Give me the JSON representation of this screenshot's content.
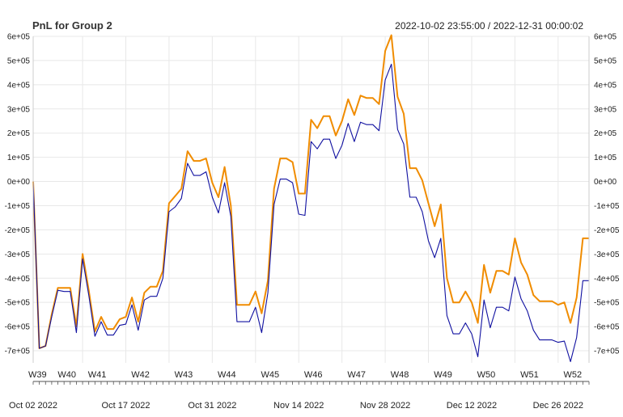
{
  "title": "PnL for Group 2",
  "date_range": "2022-10-02 23:55:00 / 2022-12-31 00:00:02",
  "colors": {
    "series_orange": "#f08c00",
    "series_blue": "#1010a0",
    "grid": "#e8e8e8",
    "axis": "#555555"
  },
  "chart_data": {
    "type": "line",
    "title": "PnL for Group 2",
    "x_range": [
      "2022-10-02",
      "2022-12-31"
    ],
    "ylim": [
      -750000,
      600000
    ],
    "grid": true,
    "y_ticks": [
      600000,
      500000,
      400000,
      300000,
      200000,
      100000,
      0,
      -100000,
      -200000,
      -300000,
      -400000,
      -500000,
      -600000,
      -700000
    ],
    "y_tick_labels": [
      "6e+05",
      "5e+05",
      "4e+05",
      "3e+05",
      "2e+05",
      "1e+05",
      "0e+00",
      "-1e+05",
      "-2e+05",
      "-3e+05",
      "-4e+05",
      "-5e+05",
      "-6e+05",
      "-7e+05"
    ],
    "week_labels": [
      {
        "date": "2022-10-02",
        "label": "W39"
      },
      {
        "date": "2022-10-03",
        "label": "W40"
      },
      {
        "date": "2022-10-10",
        "label": "W41"
      },
      {
        "date": "2022-10-17",
        "label": "W42"
      },
      {
        "date": "2022-10-24",
        "label": "W43"
      },
      {
        "date": "2022-10-31",
        "label": "W44"
      },
      {
        "date": "2022-11-07",
        "label": "W45"
      },
      {
        "date": "2022-11-14",
        "label": "W46"
      },
      {
        "date": "2022-11-21",
        "label": "W47"
      },
      {
        "date": "2022-11-28",
        "label": "W48"
      },
      {
        "date": "2022-12-05",
        "label": "W49"
      },
      {
        "date": "2022-12-12",
        "label": "W50"
      },
      {
        "date": "2022-12-19",
        "label": "W51"
      },
      {
        "date": "2022-12-26",
        "label": "W52"
      }
    ],
    "date_labels": [
      {
        "date": "2022-10-02",
        "label": "Oct 02 2022"
      },
      {
        "date": "2022-10-17",
        "label": "Oct 17 2022"
      },
      {
        "date": "2022-10-31",
        "label": "Oct 31 2022"
      },
      {
        "date": "2022-11-14",
        "label": "Nov 14 2022"
      },
      {
        "date": "2022-11-28",
        "label": "Nov 28 2022"
      },
      {
        "date": "2022-12-12",
        "label": "Dec 12 2022"
      },
      {
        "date": "2022-12-26",
        "label": "Dec 26 2022"
      }
    ],
    "series": [
      {
        "color": "#f08c00",
        "points": [
          [
            "2022-10-02",
            0
          ],
          [
            "2022-10-03",
            -690000
          ],
          [
            "2022-10-04",
            -680000
          ],
          [
            "2022-10-05",
            -550000
          ],
          [
            "2022-10-06",
            -440000
          ],
          [
            "2022-10-07",
            -440000
          ],
          [
            "2022-10-08",
            -440000
          ],
          [
            "2022-10-09",
            -600000
          ],
          [
            "2022-10-10",
            -300000
          ],
          [
            "2022-10-11",
            -450000
          ],
          [
            "2022-10-12",
            -620000
          ],
          [
            "2022-10-13",
            -560000
          ],
          [
            "2022-10-14",
            -610000
          ],
          [
            "2022-10-15",
            -610000
          ],
          [
            "2022-10-16",
            -570000
          ],
          [
            "2022-10-17",
            -560000
          ],
          [
            "2022-10-18",
            -480000
          ],
          [
            "2022-10-19",
            -580000
          ],
          [
            "2022-10-20",
            -460000
          ],
          [
            "2022-10-21",
            -435000
          ],
          [
            "2022-10-22",
            -435000
          ],
          [
            "2022-10-23",
            -370000
          ],
          [
            "2022-10-24",
            -90000
          ],
          [
            "2022-10-25",
            -60000
          ],
          [
            "2022-10-26",
            -30000
          ],
          [
            "2022-10-27",
            125000
          ],
          [
            "2022-10-28",
            85000
          ],
          [
            "2022-10-29",
            85000
          ],
          [
            "2022-10-30",
            95000
          ],
          [
            "2022-10-31",
            -5000
          ],
          [
            "2022-11-01",
            -65000
          ],
          [
            "2022-11-02",
            60000
          ],
          [
            "2022-11-03",
            -100000
          ],
          [
            "2022-11-04",
            -510000
          ],
          [
            "2022-11-05",
            -510000
          ],
          [
            "2022-11-06",
            -510000
          ],
          [
            "2022-11-07",
            -455000
          ],
          [
            "2022-11-08",
            -545000
          ],
          [
            "2022-11-09",
            -410000
          ],
          [
            "2022-11-10",
            -30000
          ],
          [
            "2022-11-11",
            95000
          ],
          [
            "2022-11-12",
            95000
          ],
          [
            "2022-11-13",
            80000
          ],
          [
            "2022-11-14",
            -50000
          ],
          [
            "2022-11-15",
            -50000
          ],
          [
            "2022-11-16",
            255000
          ],
          [
            "2022-11-17",
            220000
          ],
          [
            "2022-11-18",
            270000
          ],
          [
            "2022-11-19",
            270000
          ],
          [
            "2022-11-20",
            190000
          ],
          [
            "2022-11-21",
            250000
          ],
          [
            "2022-11-22",
            340000
          ],
          [
            "2022-11-23",
            275000
          ],
          [
            "2022-11-24",
            355000
          ],
          [
            "2022-11-25",
            345000
          ],
          [
            "2022-11-26",
            345000
          ],
          [
            "2022-11-27",
            320000
          ],
          [
            "2022-11-28",
            540000
          ],
          [
            "2022-11-29",
            605000
          ],
          [
            "2022-11-30",
            350000
          ],
          [
            "2022-12-01",
            280000
          ],
          [
            "2022-12-02",
            55000
          ],
          [
            "2022-12-03",
            55000
          ],
          [
            "2022-12-04",
            5000
          ],
          [
            "2022-12-05",
            -90000
          ],
          [
            "2022-12-06",
            -185000
          ],
          [
            "2022-12-07",
            -95000
          ],
          [
            "2022-12-08",
            -400000
          ],
          [
            "2022-12-09",
            -500000
          ],
          [
            "2022-12-10",
            -500000
          ],
          [
            "2022-12-11",
            -455000
          ],
          [
            "2022-12-12",
            -500000
          ],
          [
            "2022-12-13",
            -585000
          ],
          [
            "2022-12-14",
            -345000
          ],
          [
            "2022-12-15",
            -460000
          ],
          [
            "2022-12-16",
            -370000
          ],
          [
            "2022-12-17",
            -370000
          ],
          [
            "2022-12-18",
            -385000
          ],
          [
            "2022-12-19",
            -235000
          ],
          [
            "2022-12-20",
            -335000
          ],
          [
            "2022-12-21",
            -385000
          ],
          [
            "2022-12-22",
            -470000
          ],
          [
            "2022-12-23",
            -495000
          ],
          [
            "2022-12-24",
            -495000
          ],
          [
            "2022-12-25",
            -495000
          ],
          [
            "2022-12-26",
            -510000
          ],
          [
            "2022-12-27",
            -500000
          ],
          [
            "2022-12-28",
            -585000
          ],
          [
            "2022-12-29",
            -480000
          ],
          [
            "2022-12-30",
            -235000
          ],
          [
            "2022-12-31",
            -235000
          ]
        ]
      },
      {
        "color": "#1010a0",
        "points": [
          [
            "2022-10-02",
            0
          ],
          [
            "2022-10-03",
            -690000
          ],
          [
            "2022-10-04",
            -680000
          ],
          [
            "2022-10-05",
            -560000
          ],
          [
            "2022-10-06",
            -450000
          ],
          [
            "2022-10-07",
            -455000
          ],
          [
            "2022-10-08",
            -455000
          ],
          [
            "2022-10-09",
            -625000
          ],
          [
            "2022-10-10",
            -320000
          ],
          [
            "2022-10-11",
            -470000
          ],
          [
            "2022-10-12",
            -640000
          ],
          [
            "2022-10-13",
            -580000
          ],
          [
            "2022-10-14",
            -635000
          ],
          [
            "2022-10-15",
            -635000
          ],
          [
            "2022-10-16",
            -595000
          ],
          [
            "2022-10-17",
            -590000
          ],
          [
            "2022-10-18",
            -510000
          ],
          [
            "2022-10-19",
            -615000
          ],
          [
            "2022-10-20",
            -490000
          ],
          [
            "2022-10-21",
            -475000
          ],
          [
            "2022-10-22",
            -475000
          ],
          [
            "2022-10-23",
            -400000
          ],
          [
            "2022-10-24",
            -125000
          ],
          [
            "2022-10-25",
            -105000
          ],
          [
            "2022-10-26",
            -70000
          ],
          [
            "2022-10-27",
            75000
          ],
          [
            "2022-10-28",
            25000
          ],
          [
            "2022-10-29",
            25000
          ],
          [
            "2022-10-30",
            40000
          ],
          [
            "2022-10-31",
            -65000
          ],
          [
            "2022-11-01",
            -130000
          ],
          [
            "2022-11-02",
            -5000
          ],
          [
            "2022-11-03",
            -145000
          ],
          [
            "2022-11-04",
            -580000
          ],
          [
            "2022-11-05",
            -580000
          ],
          [
            "2022-11-06",
            -580000
          ],
          [
            "2022-11-07",
            -520000
          ],
          [
            "2022-11-08",
            -625000
          ],
          [
            "2022-11-09",
            -460000
          ],
          [
            "2022-11-10",
            -95000
          ],
          [
            "2022-11-11",
            10000
          ],
          [
            "2022-11-12",
            10000
          ],
          [
            "2022-11-13",
            -5000
          ],
          [
            "2022-11-14",
            -135000
          ],
          [
            "2022-11-15",
            -140000
          ],
          [
            "2022-11-16",
            165000
          ],
          [
            "2022-11-17",
            135000
          ],
          [
            "2022-11-18",
            175000
          ],
          [
            "2022-11-19",
            175000
          ],
          [
            "2022-11-20",
            95000
          ],
          [
            "2022-11-21",
            150000
          ],
          [
            "2022-11-22",
            240000
          ],
          [
            "2022-11-23",
            165000
          ],
          [
            "2022-11-24",
            245000
          ],
          [
            "2022-11-25",
            235000
          ],
          [
            "2022-11-26",
            235000
          ],
          [
            "2022-11-27",
            210000
          ],
          [
            "2022-11-28",
            420000
          ],
          [
            "2022-11-29",
            485000
          ],
          [
            "2022-11-30",
            215000
          ],
          [
            "2022-12-01",
            155000
          ],
          [
            "2022-12-02",
            -65000
          ],
          [
            "2022-12-03",
            -65000
          ],
          [
            "2022-12-04",
            -125000
          ],
          [
            "2022-12-05",
            -245000
          ],
          [
            "2022-12-06",
            -315000
          ],
          [
            "2022-12-07",
            -235000
          ],
          [
            "2022-12-08",
            -555000
          ],
          [
            "2022-12-09",
            -630000
          ],
          [
            "2022-12-10",
            -630000
          ],
          [
            "2022-12-11",
            -585000
          ],
          [
            "2022-12-12",
            -630000
          ],
          [
            "2022-12-13",
            -725000
          ],
          [
            "2022-12-14",
            -490000
          ],
          [
            "2022-12-15",
            -605000
          ],
          [
            "2022-12-16",
            -520000
          ],
          [
            "2022-12-17",
            -520000
          ],
          [
            "2022-12-18",
            -535000
          ],
          [
            "2022-12-19",
            -395000
          ],
          [
            "2022-12-20",
            -485000
          ],
          [
            "2022-12-21",
            -535000
          ],
          [
            "2022-12-22",
            -615000
          ],
          [
            "2022-12-23",
            -655000
          ],
          [
            "2022-12-24",
            -655000
          ],
          [
            "2022-12-25",
            -655000
          ],
          [
            "2022-12-26",
            -665000
          ],
          [
            "2022-12-27",
            -660000
          ],
          [
            "2022-12-28",
            -745000
          ],
          [
            "2022-12-29",
            -645000
          ],
          [
            "2022-12-30",
            -410000
          ],
          [
            "2022-12-31",
            -410000
          ]
        ]
      }
    ]
  }
}
